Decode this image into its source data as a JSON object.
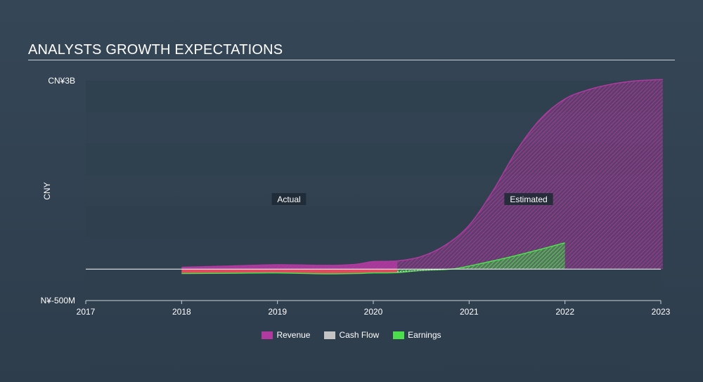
{
  "title": "ANALYSTS GROWTH EXPECTATIONS",
  "colors": {
    "revenue": "#b03aa0",
    "cashflow": "#c4c4c4",
    "earnings": "#4be04b",
    "loss": "#e8485f"
  },
  "chart_data": {
    "type": "area",
    "ylabel": "CNY",
    "y_ticks": [
      {
        "value": 3000,
        "label": "CN¥3B"
      },
      {
        "value": -500,
        "label": "N¥-500M"
      }
    ],
    "ylim": [
      -500,
      3000
    ],
    "xlim": [
      2017,
      2023
    ],
    "x_ticks": [
      "2017",
      "2018",
      "2019",
      "2020",
      "2021",
      "2022",
      "2023"
    ],
    "grid": true,
    "legend_position": "bottom-center",
    "annotations": {
      "actual": "Actual",
      "estimated": "Estimated"
    },
    "actual_end": 2020.25,
    "series": [
      {
        "name": "Revenue",
        "x": [
          2018.0,
          2018.5,
          2019.0,
          2019.5,
          2019.8,
          2020.0,
          2020.25,
          2020.5,
          2020.75,
          2021.0,
          2021.25,
          2021.5,
          2021.75,
          2022.0,
          2022.25,
          2022.5,
          2022.75,
          2023.02
        ],
        "y": [
          30,
          50,
          70,
          60,
          75,
          120,
          130,
          200,
          380,
          700,
          1250,
          1900,
          2400,
          2710,
          2860,
          2950,
          3000,
          3020
        ]
      },
      {
        "name": "Cash Flow",
        "x": [
          2020.25,
          2020.75
        ],
        "y": [
          -40,
          0
        ]
      },
      {
        "name": "Earnings",
        "x": [
          2018.0,
          2018.5,
          2019.0,
          2019.5,
          2019.8,
          2020.0,
          2020.25,
          2020.5,
          2020.8,
          2021.0,
          2021.5,
          2022.0
        ],
        "y": [
          -70,
          -65,
          -60,
          -75,
          -70,
          -60,
          -55,
          -20,
          0,
          50,
          220,
          420
        ]
      }
    ]
  },
  "legend": [
    {
      "label": "Revenue",
      "color_key": "revenue"
    },
    {
      "label": "Cash Flow",
      "color_key": "cashflow"
    },
    {
      "label": "Earnings",
      "color_key": "earnings"
    }
  ]
}
